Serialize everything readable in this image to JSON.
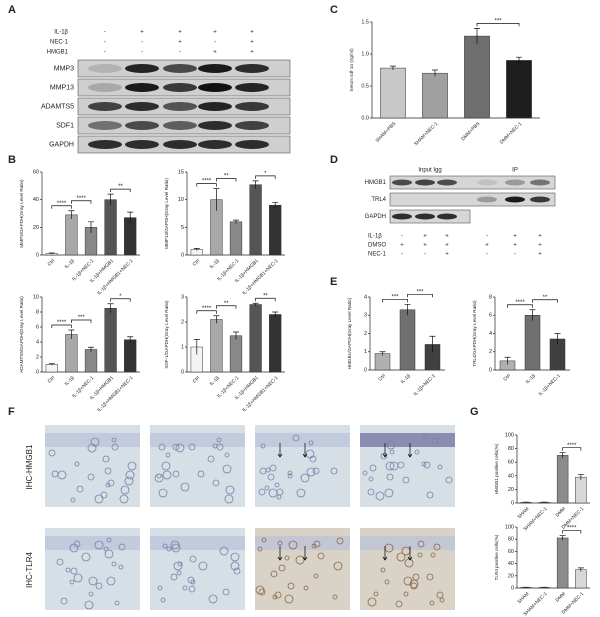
{
  "panel_letters": [
    "A",
    "B",
    "C",
    "D",
    "E",
    "F",
    "G"
  ],
  "panels": {
    "A": {
      "conditions": [
        {
          "name": "IL-1β",
          "signs": [
            "-",
            "+",
            "+",
            "+",
            "+"
          ]
        },
        {
          "name": "NEC-1",
          "signs": [
            "-",
            "-",
            "+",
            "-",
            "+"
          ]
        },
        {
          "name": "HMGB1",
          "signs": [
            "-",
            "-",
            "-",
            "+",
            "+"
          ]
        }
      ],
      "rows": [
        "MMP3",
        "MMP13",
        "ADAMTS5",
        "SDF1",
        "GAPDH"
      ]
    },
    "D": {
      "groups": [
        "Input Igg",
        "IP"
      ],
      "rows": [
        "HMGB1",
        "TRL4",
        "GAPDH"
      ],
      "conditions": [
        {
          "name": "IL-1β",
          "signs": [
            "-",
            "+",
            "+",
            "-",
            "+",
            "+"
          ]
        },
        {
          "name": "DMSO",
          "signs": [
            "+",
            "+",
            "+",
            "+",
            "+",
            "+"
          ]
        },
        {
          "name": "NEC-1",
          "signs": [
            "-",
            "-",
            "+",
            "-",
            "-",
            "+"
          ]
        }
      ]
    },
    "F": {
      "rows": [
        "IHC-HMGB1",
        "IHC-TLR4"
      ]
    }
  },
  "chart_data": [
    {
      "type": "bar",
      "ylabel": "Serum sdf-1α (ng/ml)",
      "categories": [
        "SHAM+PBS",
        "SHAM+NEC-1",
        "DMM+PBS",
        "DMM+NEC-1"
      ],
      "values": [
        0.78,
        0.7,
        1.28,
        0.9
      ],
      "errors": [
        0.03,
        0.05,
        0.12,
        0.05
      ],
      "colors": [
        "#c8c8c8",
        "#a0a0a0",
        "#6e6e6e",
        "#1e1e1e"
      ],
      "ylim": [
        0,
        1.5
      ],
      "yticks": [
        {
          "value": 0,
          "label": "0.0"
        },
        {
          "value": 0.5,
          "label": "0.5"
        },
        {
          "value": 1,
          "label": "1.0"
        },
        {
          "value": 1.5,
          "label": "1.5"
        }
      ],
      "annotations": [
        "***"
      ]
    },
    {
      "type": "bar",
      "ylabel": "MMP3/GAPDH(Gray Level Ratio)",
      "categories": [
        "Ctrl",
        "IL-1β",
        "IL-1β+NEC-1",
        "IL-1β+HMGB1",
        "IL-1β+HMGB1+NEC-1"
      ],
      "values": [
        1,
        29,
        20,
        40,
        27
      ],
      "errors": [
        0.5,
        3,
        4,
        4,
        4
      ],
      "colors": [
        "#f4f4f4",
        "#a8a8a8",
        "#888888",
        "#555555",
        "#333333"
      ],
      "ylim": [
        0,
        60
      ],
      "yticks": [
        0,
        20,
        40,
        60
      ],
      "annotations": [
        "****",
        "****",
        "**"
      ]
    },
    {
      "type": "bar",
      "ylabel": "MMP13/GAPDH(Gray Level Ratio)",
      "categories": [
        "Ctrl",
        "IL-1β",
        "IL-1β+NEC-1",
        "IL-1β+HMGB1",
        "IL-1β+HMGB1+NEC-1"
      ],
      "values": [
        1,
        10,
        6,
        12.7,
        9
      ],
      "errors": [
        0.2,
        2,
        0.3,
        0.7,
        0.5
      ],
      "colors": [
        "#f4f4f4",
        "#a8a8a8",
        "#888888",
        "#555555",
        "#333333"
      ],
      "ylim": [
        0,
        15
      ],
      "yticks": [
        0,
        5,
        10,
        15
      ],
      "annotations": [
        "****",
        "**",
        "*"
      ]
    },
    {
      "type": "bar",
      "ylabel": "ADAMTS5/GAPDH(Gray Level Ratio)",
      "categories": [
        "Ctrl",
        "IL-1β",
        "IL-1β+NEC-1",
        "IL-1β+HMGB1",
        "IL-1β+HMGB1+NEC-1"
      ],
      "values": [
        1,
        5,
        3,
        8.5,
        4.3
      ],
      "errors": [
        0.1,
        0.6,
        0.3,
        0.6,
        0.4
      ],
      "colors": [
        "#f4f4f4",
        "#a8a8a8",
        "#888888",
        "#555555",
        "#333333"
      ],
      "ylim": [
        0,
        10
      ],
      "yticks": [
        0,
        2,
        4,
        6,
        8,
        10
      ],
      "annotations": [
        "****",
        "***",
        "*"
      ]
    },
    {
      "type": "bar",
      "ylabel": "SDF-1/GAPDH(Gray Level Ratio)",
      "categories": [
        "Ctrl",
        "IL-1β",
        "IL-1β+NEC-1",
        "IL-1β+HMGB1",
        "IL-1β+HMGB1+NEC-1"
      ],
      "values": [
        1,
        2.1,
        1.45,
        2.7,
        2.3
      ],
      "errors": [
        0.3,
        0.15,
        0.15,
        0.05,
        0.1
      ],
      "colors": [
        "#f4f4f4",
        "#a8a8a8",
        "#888888",
        "#555555",
        "#333333"
      ],
      "ylim": [
        0,
        3
      ],
      "yticks": [
        0,
        1,
        2,
        3
      ],
      "annotations": [
        "****",
        "**",
        "**"
      ]
    },
    {
      "type": "bar",
      "ylabel": "HMGB1/GAPDH(Gray Level Ratio)",
      "categories": [
        "Ctrl",
        "IL-1β",
        "IL-1β+NEC-1"
      ],
      "values": [
        0.9,
        3.3,
        1.4
      ],
      "errors": [
        0.1,
        0.3,
        0.45
      ],
      "colors": [
        "#b0b0b0",
        "#707070",
        "#404040"
      ],
      "ylim": [
        0,
        4
      ],
      "yticks": [
        0,
        1,
        2,
        3,
        4
      ],
      "annotations": [
        "***",
        "***"
      ]
    },
    {
      "type": "bar",
      "ylabel": "TRL4/GAPDH(Gray Level Ratio)",
      "categories": [
        "Ctrl",
        "IL-1β",
        "IL-1β+NEC-1"
      ],
      "values": [
        1,
        6,
        3.4
      ],
      "errors": [
        0.4,
        0.6,
        0.6
      ],
      "colors": [
        "#b0b0b0",
        "#707070",
        "#404040"
      ],
      "ylim": [
        0,
        8
      ],
      "yticks": [
        0,
        2,
        4,
        6,
        8
      ],
      "annotations": [
        "****",
        "**"
      ]
    },
    {
      "type": "bar",
      "ylabel": "HMGB1 positive cells(%)",
      "categories": [
        "SHAM",
        "SHAM+NEC-1",
        "DMM",
        "DMM+NEC-1"
      ],
      "values": [
        1,
        1,
        70,
        38
      ],
      "errors": [
        0.3,
        0.3,
        4,
        4
      ],
      "colors": [
        "#d0d0d0",
        "#c0c0c0",
        "#8c8c8c",
        "#d8d8d8"
      ],
      "ylim": [
        0,
        100
      ],
      "yticks": [
        0,
        20,
        40,
        60,
        80,
        100
      ],
      "annotations": [
        "****"
      ]
    },
    {
      "type": "bar",
      "ylabel": "TLR4 positive cells(%)",
      "categories": [
        "SHAM",
        "SHAM+NEC-1",
        "DMM",
        "DMM+NEC-1"
      ],
      "values": [
        1,
        1,
        82,
        30
      ],
      "errors": [
        0.3,
        0.3,
        4,
        3
      ],
      "colors": [
        "#d0d0d0",
        "#c0c0c0",
        "#8c8c8c",
        "#d8d8d8"
      ],
      "ylim": [
        0,
        100
      ],
      "yticks": [
        0,
        20,
        40,
        60,
        80,
        100
      ],
      "annotations": [
        "****"
      ]
    }
  ]
}
